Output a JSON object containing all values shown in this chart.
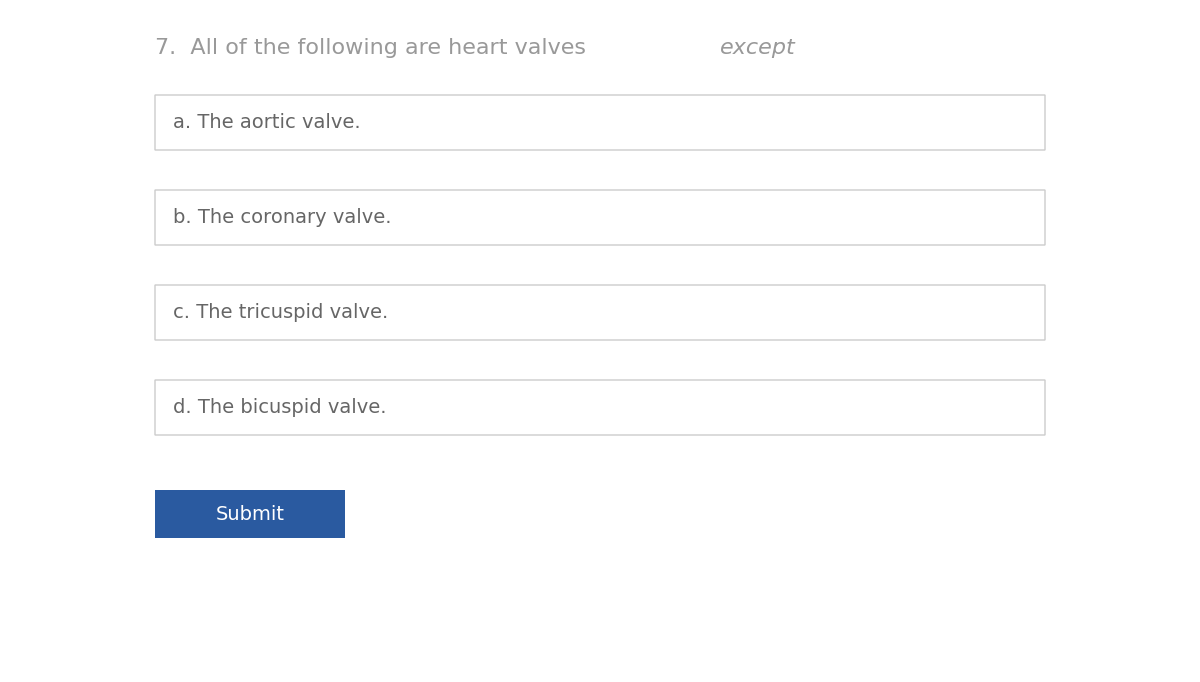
{
  "background_color": "#ffffff",
  "question_number": "7.",
  "question_text_normal": "  All of the following are heart valves ",
  "question_text_italic": "except",
  "question_color": "#999999",
  "question_fontsize": 16,
  "options": [
    "a. The aortic valve.",
    "b. The coronary valve.",
    "c. The tricuspid valve.",
    "d. The bicuspid valve."
  ],
  "option_color": "#666666",
  "option_fontsize": 14,
  "box_edge_color": "#cccccc",
  "box_bg_color": "#ffffff",
  "submit_text": "Submit",
  "submit_bg": "#2a5aa0",
  "submit_text_color": "#ffffff",
  "submit_fontsize": 14
}
